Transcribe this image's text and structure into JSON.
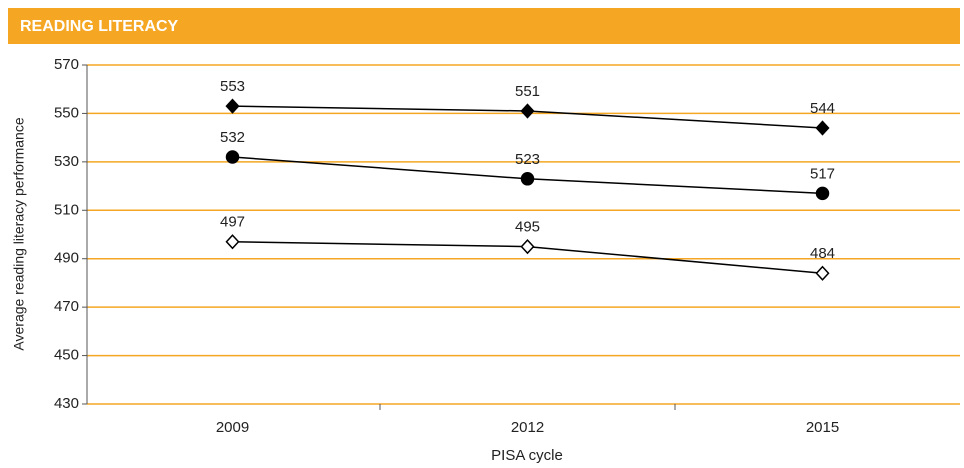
{
  "chart_data": {
    "type": "line",
    "title": "READING LITERACY",
    "x_label": "PISA cycle",
    "y_label": "Average reading literacy performance",
    "categories": [
      "2009",
      "2012",
      "2015"
    ],
    "series": [
      {
        "color": "#000000",
        "marker": "diamond",
        "marker_fill": "filled",
        "values": [
          553,
          551,
          544
        ]
      },
      {
        "color": "#000000",
        "marker": "circle",
        "marker_fill": "filled",
        "values": [
          532,
          523,
          517
        ]
      },
      {
        "color": "#000000",
        "marker": "diamond",
        "marker_fill": "open",
        "values": [
          497,
          495,
          484
        ]
      }
    ],
    "ylim": [
      430,
      570
    ],
    "yticks": [
      430,
      450,
      470,
      490,
      510,
      530,
      550,
      570
    ],
    "grid": true,
    "grid_color": "#f5a623"
  }
}
